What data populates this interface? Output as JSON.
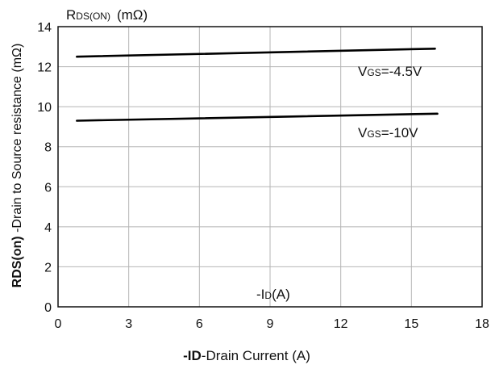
{
  "chart_data": {
    "type": "line",
    "x_unit_label": "-I",
    "x_unit_sub": "D",
    "x_unit_tail": "(A)",
    "xlabel_bold": "-ID",
    "xlabel_rest": "-Drain Current (A)",
    "y_unit_main": "R",
    "y_unit_sub": "DS(ON)",
    "y_unit_tail": "(mΩ)",
    "ylabel_bold": "RDS(on)",
    "ylabel_rest": " -Drain to Source resistance (mΩ)",
    "xlim": [
      0,
      18
    ],
    "ylim": [
      0,
      14
    ],
    "xticks": [
      0,
      3,
      6,
      9,
      12,
      15,
      18
    ],
    "yticks": [
      0,
      2,
      4,
      6,
      8,
      10,
      12,
      14
    ],
    "grid": true,
    "series": [
      {
        "label_main": "V",
        "label_sub": "GS",
        "label_tail": "=-4.5V",
        "x": [
          0.8,
          16.0
        ],
        "y": [
          12.5,
          12.9
        ]
      },
      {
        "label_main": "V",
        "label_sub": "GS",
        "label_tail": "=-10V",
        "x": [
          0.8,
          16.1
        ],
        "y": [
          9.3,
          9.65
        ]
      }
    ]
  }
}
